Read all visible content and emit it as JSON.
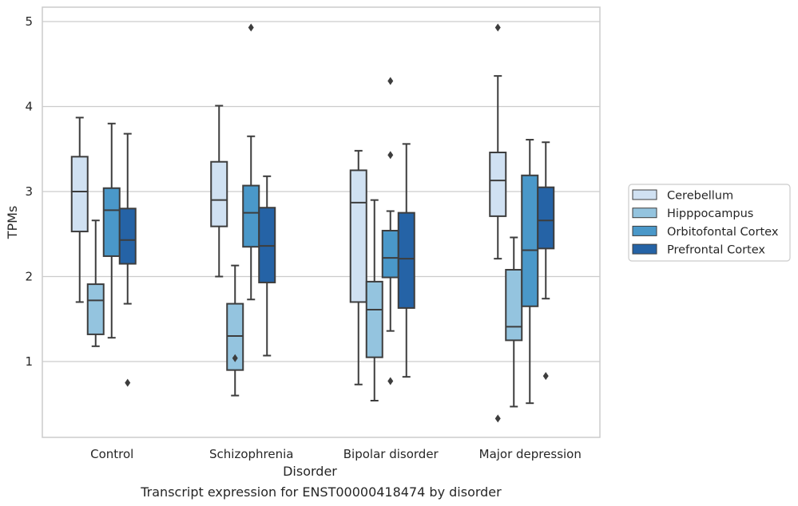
{
  "chart_data": {
    "type": "box",
    "caption": "Transcript expression for ENST00000418474 by disorder",
    "xlabel": "Disorder",
    "ylabel": "TPMs",
    "ylim": [
      0.15,
      5.2
    ],
    "yticks": [
      1,
      2,
      3,
      4,
      5
    ],
    "grid": "horizontal",
    "legend_position": "right",
    "categories": [
      "Control",
      "Schizophrenia",
      "Bipolar disorder",
      "Major depression"
    ],
    "series": [
      {
        "name": "Cerebellum",
        "color": "#d0e1f2",
        "boxes": [
          {
            "whislo": 1.7,
            "q1": 2.53,
            "med": 3.0,
            "q3": 3.41,
            "whishi": 3.87,
            "fliers": []
          },
          {
            "whislo": 2.0,
            "q1": 2.59,
            "med": 2.9,
            "q3": 3.35,
            "whishi": 4.01,
            "fliers": []
          },
          {
            "whislo": 0.73,
            "q1": 1.7,
            "med": 2.87,
            "q3": 3.25,
            "whishi": 3.48,
            "fliers": []
          },
          {
            "whislo": 2.21,
            "q1": 2.71,
            "med": 3.13,
            "q3": 3.46,
            "whishi": 4.36,
            "fliers": [
              4.93,
              0.33
            ]
          }
        ]
      },
      {
        "name": "Hipppocampus",
        "color": "#94c4df",
        "boxes": [
          {
            "whislo": 1.18,
            "q1": 1.32,
            "med": 1.72,
            "q3": 1.91,
            "whishi": 2.66,
            "fliers": []
          },
          {
            "whislo": 0.6,
            "q1": 0.9,
            "med": 1.3,
            "q3": 1.68,
            "whishi": 2.13,
            "fliers": [
              1.04
            ]
          },
          {
            "whislo": 0.54,
            "q1": 1.05,
            "med": 1.61,
            "q3": 1.94,
            "whishi": 2.9,
            "fliers": []
          },
          {
            "whislo": 0.47,
            "q1": 1.25,
            "med": 1.41,
            "q3": 2.08,
            "whishi": 2.46,
            "fliers": []
          }
        ]
      },
      {
        "name": "Orbitofontal Cortex",
        "color": "#4a98c9",
        "boxes": [
          {
            "whislo": 1.28,
            "q1": 2.24,
            "med": 2.78,
            "q3": 3.04,
            "whishi": 3.8,
            "fliers": []
          },
          {
            "whislo": 1.73,
            "q1": 2.35,
            "med": 2.75,
            "q3": 3.07,
            "whishi": 3.65,
            "fliers": [
              4.93
            ]
          },
          {
            "whislo": 1.36,
            "q1": 1.99,
            "med": 2.22,
            "q3": 2.54,
            "whishi": 2.77,
            "fliers": [
              4.3,
              3.43,
              0.77
            ]
          },
          {
            "whislo": 0.51,
            "q1": 1.65,
            "med": 2.31,
            "q3": 3.19,
            "whishi": 3.61,
            "fliers": []
          }
        ]
      },
      {
        "name": "Prefrontal Cortex",
        "color": "#2563a6",
        "boxes": [
          {
            "whislo": 1.68,
            "q1": 2.15,
            "med": 2.43,
            "q3": 2.8,
            "whishi": 3.68,
            "fliers": [
              0.75
            ]
          },
          {
            "whislo": 1.07,
            "q1": 1.93,
            "med": 2.36,
            "q3": 2.81,
            "whishi": 3.18,
            "fliers": []
          },
          {
            "whislo": 0.82,
            "q1": 1.63,
            "med": 2.21,
            "q3": 2.75,
            "whishi": 3.56,
            "fliers": []
          },
          {
            "whislo": 1.74,
            "q1": 2.33,
            "med": 2.66,
            "q3": 3.05,
            "whishi": 3.58,
            "fliers": [
              0.83
            ]
          }
        ]
      }
    ]
  }
}
